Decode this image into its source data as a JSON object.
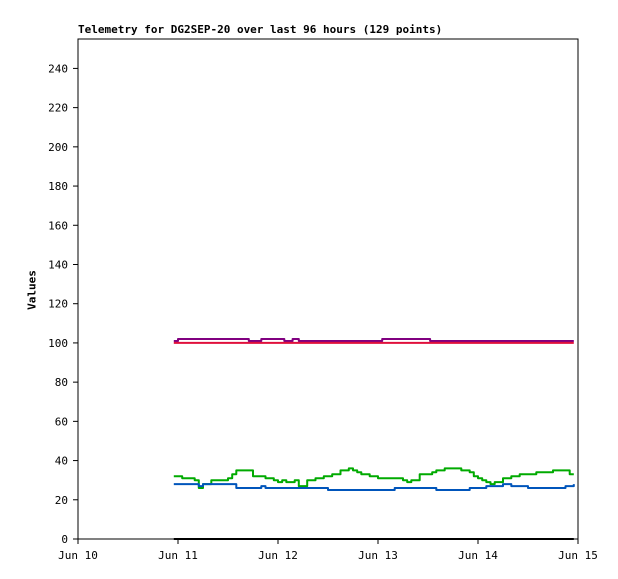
{
  "chart_data": {
    "type": "line",
    "title": "Telemetry for DG2SEP-20 over last 96 hours (129 points)",
    "ylabel": "Values",
    "xlabel": "",
    "ylim": [
      0,
      255
    ],
    "yticks": [
      0,
      20,
      40,
      60,
      80,
      100,
      120,
      140,
      160,
      180,
      200,
      220,
      240
    ],
    "x_range_hours": [
      0,
      120
    ],
    "xticks": [
      {
        "label": "Jun 10",
        "hour": 0
      },
      {
        "label": "Jun 11",
        "hour": 24
      },
      {
        "label": "Jun 12",
        "hour": 48
      },
      {
        "label": "Jun 13",
        "hour": 72
      },
      {
        "label": "Jun 14",
        "hour": 96
      },
      {
        "label": "Jun 15",
        "hour": 120
      }
    ],
    "grid": false,
    "series": [
      {
        "color": "#800080",
        "hours": [
          23,
          24,
          30,
          36,
          40,
          41,
          44,
          48,
          49.5,
          50,
          51,
          51.5,
          53,
          60,
          66,
          72,
          73,
          78,
          84,
          84.5,
          90,
          96,
          102,
          108,
          114,
          119
        ],
        "values": [
          101,
          102,
          102,
          102,
          102,
          101,
          102,
          102,
          101,
          101,
          101,
          102,
          101,
          101,
          101,
          101,
          102,
          102,
          102,
          101,
          101,
          101,
          101,
          101,
          101,
          101
        ]
      },
      {
        "color": "#e0103c",
        "hours": [
          23,
          119
        ],
        "values": [
          100,
          100
        ]
      },
      {
        "color": "#00aa00",
        "hours": [
          23,
          24,
          25,
          27,
          28,
          29,
          30,
          32,
          36,
          37,
          38,
          40,
          42,
          45,
          47,
          48,
          49,
          50,
          51,
          52,
          53,
          55,
          57,
          59,
          60,
          61,
          63,
          65,
          66,
          67,
          68,
          70,
          72,
          74,
          76,
          78,
          79,
          80,
          82,
          84,
          85,
          86,
          88,
          90,
          92,
          94,
          95,
          96,
          97,
          98,
          99,
          100,
          102,
          104,
          106,
          108,
          110,
          112,
          114,
          116,
          118,
          119
        ],
        "values": [
          32,
          32,
          31,
          31,
          30,
          26,
          28,
          30,
          31,
          33,
          35,
          35,
          32,
          31,
          30,
          29,
          30,
          29,
          29,
          30,
          27,
          30,
          31,
          32,
          32,
          33,
          35,
          36,
          35,
          34,
          33,
          32,
          31,
          31,
          31,
          30,
          29,
          30,
          33,
          33,
          34,
          35,
          36,
          36,
          35,
          34,
          32,
          31,
          30,
          29,
          28,
          29,
          31,
          32,
          33,
          33,
          34,
          34,
          35,
          35,
          33,
          33
        ]
      },
      {
        "color": "#0055bb",
        "hours": [
          23,
          24,
          28,
          29,
          30,
          32,
          35,
          37,
          38,
          39,
          40,
          42,
          44,
          45,
          46,
          47,
          48,
          50,
          52,
          55,
          60,
          64,
          68,
          72,
          76,
          80,
          84,
          86,
          88,
          90,
          92,
          94,
          96,
          98,
          100,
          102,
          104,
          108,
          112,
          114,
          116,
          117,
          118,
          119
        ],
        "values": [
          28,
          28,
          28,
          27,
          28,
          28,
          28,
          28,
          26,
          26,
          26,
          26,
          27,
          26,
          26,
          26,
          26,
          26,
          26,
          26,
          25,
          25,
          25,
          25,
          26,
          26,
          26,
          25,
          25,
          25,
          25,
          26,
          26,
          27,
          27,
          28,
          27,
          26,
          26,
          26,
          26,
          27,
          27,
          28
        ]
      },
      {
        "color": "#000000",
        "hours": [
          23,
          119
        ],
        "values": [
          0,
          0
        ]
      }
    ]
  }
}
